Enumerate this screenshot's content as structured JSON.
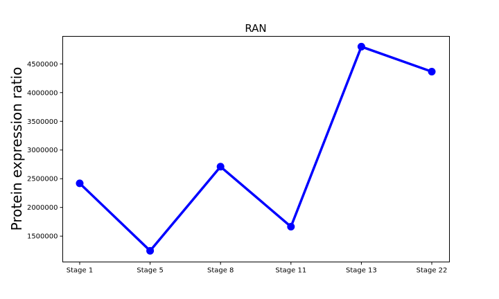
{
  "chart_data": {
    "type": "line",
    "title": "RAN",
    "xlabel": "",
    "ylabel": "Protein expression ratio",
    "categories": [
      "Stage 1",
      "Stage 5",
      "Stage 8",
      "Stage 11",
      "Stage 13",
      "Stage 22"
    ],
    "series": [
      {
        "values": [
          2420000,
          1245000,
          2710000,
          1665000,
          4800000,
          4365000
        ],
        "color": "#0000ff",
        "marker": "circle"
      }
    ],
    "yticks": [
      1500000,
      2000000,
      2500000,
      3000000,
      3500000,
      4000000,
      4500000
    ],
    "ytick_labels": [
      "1500000",
      "2000000",
      "2500000",
      "3000000",
      "3500000",
      "4000000",
      "4500000"
    ],
    "ylim": [
      1050000,
      4980000
    ],
    "grid": false,
    "legend": "none"
  }
}
